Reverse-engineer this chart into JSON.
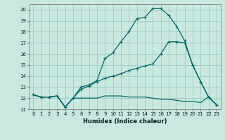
{
  "title": "",
  "xlabel": "Humidex (Indice chaleur)",
  "bg_color": "#c8e8e0",
  "grid_color": "#a0c8c0",
  "line_color": "#006868",
  "xlim": [
    -0.5,
    23.5
  ],
  "ylim": [
    11,
    20.5
  ],
  "yticks": [
    11,
    12,
    13,
    14,
    15,
    16,
    17,
    18,
    19,
    20
  ],
  "xticks": [
    0,
    1,
    2,
    3,
    4,
    5,
    6,
    7,
    8,
    9,
    10,
    11,
    12,
    13,
    14,
    15,
    16,
    17,
    18,
    19,
    20,
    21,
    22,
    23
  ],
  "line1_x": [
    0,
    1,
    2,
    3,
    4,
    5,
    6,
    7,
    8,
    9,
    10,
    11,
    12,
    13,
    14,
    15,
    16,
    17,
    18,
    19,
    20,
    21,
    22,
    23
  ],
  "line1_y": [
    12.3,
    12.1,
    12.1,
    12.2,
    11.2,
    12.0,
    13.0,
    13.2,
    13.6,
    15.6,
    16.1,
    17.1,
    18.0,
    19.2,
    19.3,
    20.1,
    20.1,
    19.5,
    18.5,
    17.2,
    15.0,
    13.5,
    12.1,
    11.4
  ],
  "line2_x": [
    0,
    1,
    2,
    3,
    4,
    5,
    6,
    7,
    8,
    9,
    10,
    11,
    12,
    13,
    14,
    15,
    16,
    17,
    18,
    19,
    20,
    21,
    22,
    23
  ],
  "line2_y": [
    12.3,
    12.1,
    12.1,
    12.2,
    11.2,
    12.0,
    12.8,
    13.1,
    13.5,
    13.8,
    14.0,
    14.2,
    14.5,
    14.7,
    14.9,
    15.1,
    16.0,
    17.1,
    17.1,
    17.0,
    15.0,
    13.5,
    12.1,
    11.4
  ],
  "line3_x": [
    0,
    1,
    2,
    3,
    4,
    5,
    6,
    7,
    8,
    9,
    10,
    11,
    12,
    13,
    14,
    15,
    16,
    17,
    18,
    19,
    20,
    21,
    22,
    23
  ],
  "line3_y": [
    12.3,
    12.1,
    12.1,
    12.2,
    11.2,
    12.0,
    12.0,
    12.0,
    12.0,
    12.2,
    12.2,
    12.2,
    12.1,
    12.1,
    12.1,
    12.0,
    11.9,
    11.9,
    11.8,
    11.7,
    11.7,
    11.6,
    12.1,
    11.4
  ],
  "label_fontsize": 5.0,
  "xlabel_fontsize": 6.0
}
